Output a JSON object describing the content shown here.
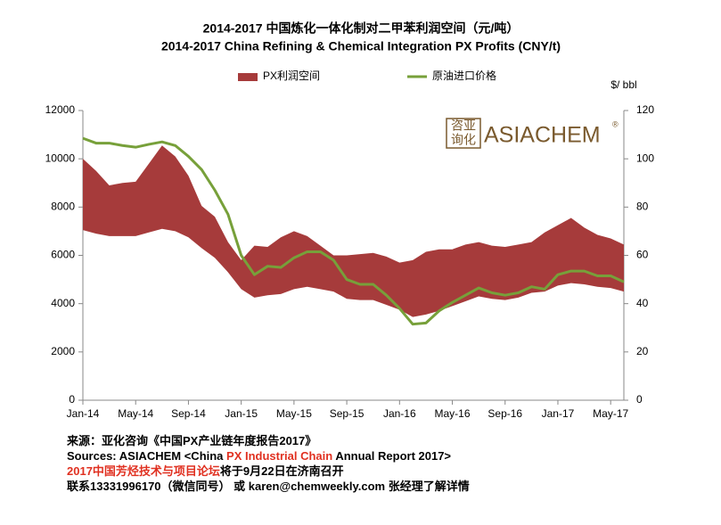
{
  "chart_data": {
    "type": "area",
    "title": "2014-2017 中国炼化一体化制对二甲苯利润空间（元/吨）",
    "subtitle": "2014-2017 China  Refining & Chemical Integration PX Profits (CNY/t)",
    "y2_label": "$/ bbl",
    "categories": [
      "Jan-14",
      null,
      null,
      null,
      "May-14",
      null,
      null,
      null,
      "Sep-14",
      null,
      null,
      null,
      "Jan-15",
      null,
      null,
      null,
      "May-15",
      null,
      null,
      null,
      "Sep-15",
      null,
      null,
      null,
      "Jan-16",
      null,
      null,
      null,
      "May-16",
      null,
      null,
      null,
      "Sep-16",
      null,
      null,
      null,
      "Jan-17",
      null,
      null,
      null,
      "May-17",
      null
    ],
    "series": [
      {
        "name": "PX利润空间",
        "color": "#a63b3b",
        "low": [
          7050,
          6900,
          6800,
          6800,
          6800,
          6950,
          7100,
          7000,
          6750,
          6300,
          5900,
          5300,
          4600,
          4250,
          4350,
          4400,
          4600,
          4700,
          4600,
          4500,
          4200,
          4150,
          4150,
          3950,
          3750,
          3450,
          3550,
          3700,
          3900,
          4100,
          4300,
          4200,
          4150,
          4250,
          4450,
          4500,
          4750,
          4850,
          4800,
          4700,
          4650,
          4500
        ],
        "high": [
          10000,
          9500,
          8900,
          9000,
          9050,
          9800,
          10550,
          10100,
          9300,
          8050,
          7600,
          6550,
          5800,
          6400,
          6350,
          6750,
          7000,
          6800,
          6400,
          6000,
          6000,
          6050,
          6100,
          5950,
          5700,
          5800,
          6150,
          6250,
          6250,
          6450,
          6550,
          6400,
          6350,
          6450,
          6550,
          6950,
          7250,
          7550,
          7150,
          6850,
          6700,
          6450
        ]
      },
      {
        "name": "原油进口价格",
        "color": "#77a03a",
        "axis": "y2",
        "values": [
          108.5,
          106.5,
          106.5,
          105.5,
          104.8,
          106,
          107,
          105.5,
          101,
          95.5,
          87,
          77,
          60,
          52,
          55.5,
          55,
          59,
          61.5,
          61.5,
          58,
          50,
          48,
          48,
          43.5,
          38,
          31.5,
          32,
          37,
          40.5,
          43.5,
          46.5,
          44.5,
          43.5,
          44.5,
          47,
          46,
          52,
          53.5,
          53.5,
          51.5,
          51.5,
          49
        ]
      }
    ],
    "ylim": [
      0,
      12000
    ],
    "yticks": [
      0,
      2000,
      4000,
      6000,
      8000,
      10000,
      12000
    ],
    "y2lim": [
      0,
      120
    ],
    "y2ticks": [
      0,
      20,
      40,
      60,
      80,
      100,
      120
    ],
    "grid": false,
    "legend": "top"
  },
  "logo": {
    "cn_top": "咨亚",
    "cn_bottom": "询化",
    "text": "ASIACHEM",
    "mark": "®",
    "color": "#7a5a2e"
  },
  "footer": {
    "lines": [
      [
        {
          "text": "来源：亚化咨询《中国PX产业链年度报告2017》",
          "color": "#000000"
        }
      ],
      [
        {
          "text": "Sources: ASIACHEM <China ",
          "color": "#000000"
        },
        {
          "text": "PX Industrial Chain",
          "color": "#e03020"
        },
        {
          "text": " Annual Report 2017>",
          "color": "#000000"
        }
      ],
      [
        {
          "text": "2017中国芳烃技术与项目论坛",
          "color": "#e03020"
        },
        {
          "text": "将于9月22日在济南召开",
          "color": "#000000"
        }
      ],
      [
        {
          "text": "联系13331996170（微信同号） 或 karen@chemweekly.com 张经理了解详情",
          "color": "#000000"
        }
      ]
    ]
  }
}
